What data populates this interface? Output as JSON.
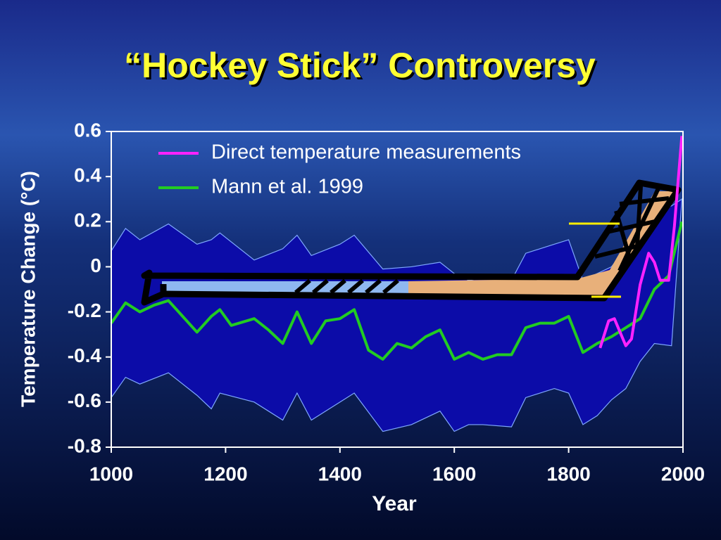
{
  "chart_data": {
    "type": "line",
    "title": "“Hockey Stick” Controversy",
    "xlabel": "Year",
    "ylabel": "Temperature Change (°C)",
    "xlim": [
      1000,
      2000
    ],
    "xticks": [
      1000,
      1200,
      1400,
      1600,
      1800,
      2000
    ],
    "ylim": [
      -0.8,
      0.6
    ],
    "yticks": [
      0.6,
      0.4,
      0.2,
      0,
      -0.2,
      -0.4,
      -0.6,
      -0.8
    ],
    "legend": "top",
    "band": {
      "color": "#0c0ca8",
      "edge": "#7fa8ff",
      "x": [
        1000,
        1025,
        1050,
        1100,
        1150,
        1175,
        1190,
        1250,
        1300,
        1325,
        1350,
        1400,
        1425,
        1475,
        1525,
        1575,
        1600,
        1625,
        1650,
        1700,
        1725,
        1775,
        1800,
        1825,
        1850,
        1875,
        1900,
        1925,
        1950,
        1980,
        1998
      ],
      "upper": [
        0.07,
        0.17,
        0.12,
        0.19,
        0.1,
        0.12,
        0.15,
        0.03,
        0.08,
        0.14,
        0.05,
        0.1,
        0.14,
        -0.01,
        0.0,
        0.02,
        -0.03,
        -0.06,
        -0.05,
        -0.06,
        0.06,
        0.1,
        0.12,
        -0.06,
        -0.03,
        0.0,
        0.08,
        0.18,
        0.25,
        0.27,
        0.3
      ],
      "lower": [
        -0.58,
        -0.49,
        -0.52,
        -0.47,
        -0.57,
        -0.63,
        -0.56,
        -0.6,
        -0.68,
        -0.56,
        -0.68,
        -0.6,
        -0.56,
        -0.73,
        -0.7,
        -0.64,
        -0.73,
        -0.7,
        -0.7,
        -0.71,
        -0.58,
        -0.54,
        -0.56,
        -0.7,
        -0.66,
        -0.59,
        -0.54,
        -0.42,
        -0.34,
        -0.35,
        0.3
      ]
    },
    "series": [
      {
        "name": "Direct temperature measurements",
        "color": "#ff22ff",
        "x": [
          1855,
          1870,
          1880,
          1900,
          1910,
          1925,
          1940,
          1950,
          1960,
          1975,
          1985,
          1998
        ],
        "values": [
          -0.36,
          -0.24,
          -0.23,
          -0.35,
          -0.32,
          -0.08,
          0.06,
          0.02,
          -0.06,
          -0.06,
          0.18,
          0.58
        ]
      },
      {
        "name": "Mann et al. 1999",
        "color": "#22cc22",
        "x": [
          1000,
          1025,
          1050,
          1075,
          1100,
          1125,
          1150,
          1175,
          1190,
          1210,
          1250,
          1275,
          1300,
          1325,
          1350,
          1375,
          1400,
          1425,
          1450,
          1475,
          1500,
          1525,
          1550,
          1575,
          1600,
          1625,
          1650,
          1675,
          1700,
          1725,
          1750,
          1775,
          1800,
          1825,
          1850,
          1875,
          1900,
          1925,
          1950,
          1975,
          1998
        ],
        "values": [
          -0.25,
          -0.16,
          -0.2,
          -0.17,
          -0.15,
          -0.22,
          -0.29,
          -0.22,
          -0.19,
          -0.26,
          -0.23,
          -0.28,
          -0.34,
          -0.2,
          -0.34,
          -0.24,
          -0.23,
          -0.19,
          -0.37,
          -0.41,
          -0.34,
          -0.36,
          -0.31,
          -0.28,
          -0.41,
          -0.38,
          -0.41,
          -0.39,
          -0.39,
          -0.27,
          -0.25,
          -0.25,
          -0.22,
          -0.38,
          -0.34,
          -0.31,
          -0.27,
          -0.23,
          -0.1,
          -0.04,
          0.2
        ]
      }
    ]
  }
}
